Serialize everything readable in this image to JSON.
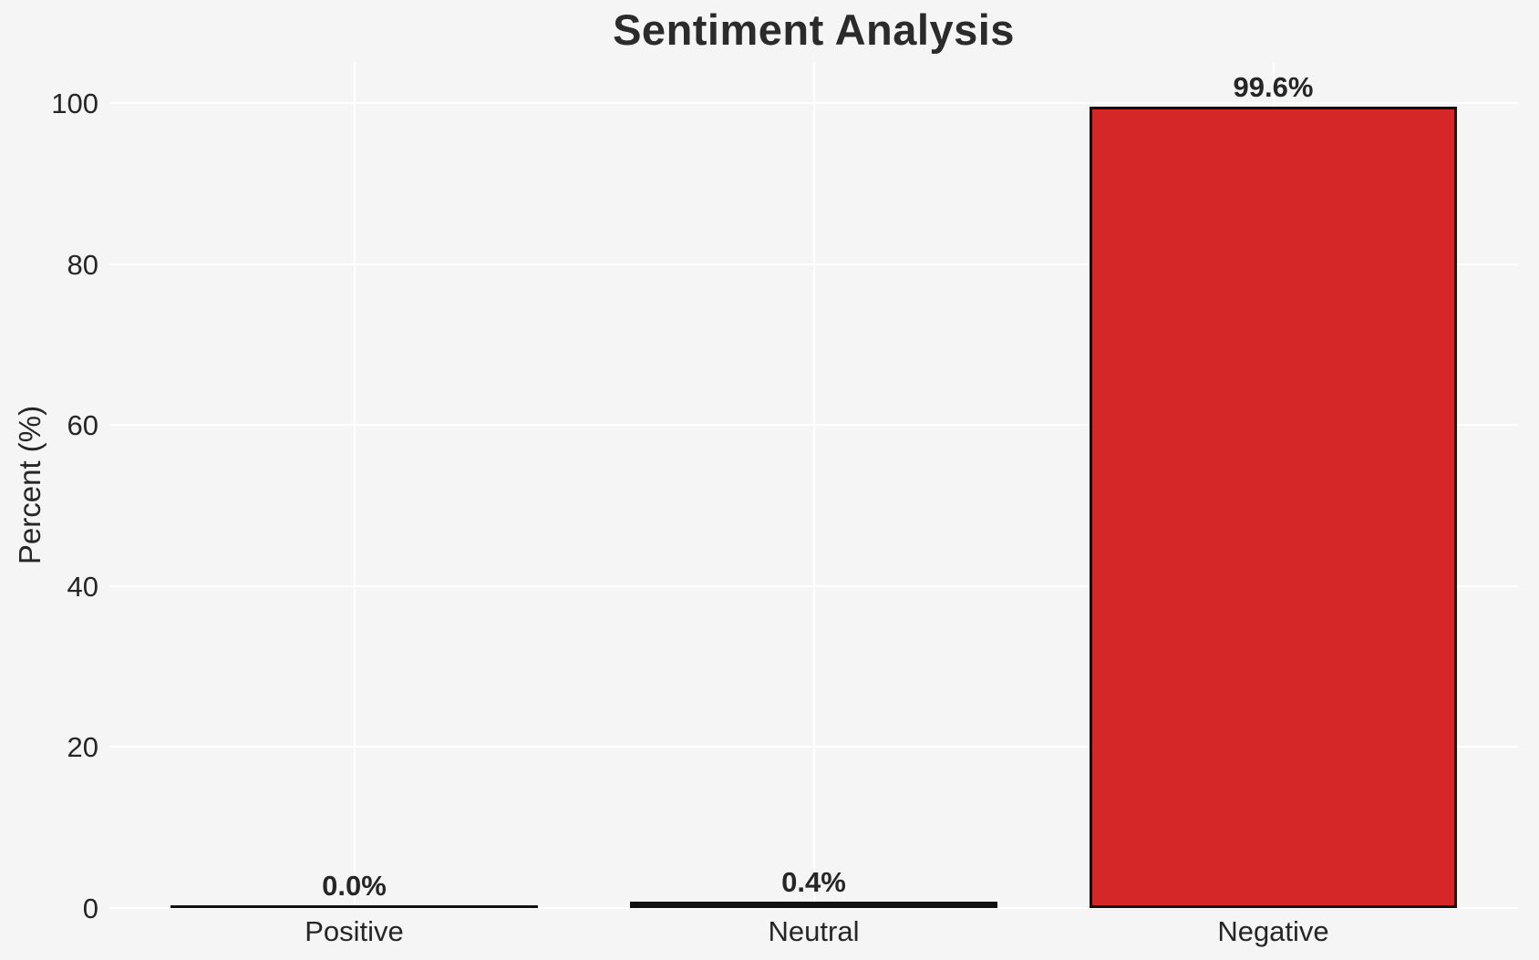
{
  "chart_data": {
    "type": "bar",
    "title": "Sentiment Analysis",
    "xlabel": "",
    "ylabel": "Percent (%)",
    "categories": [
      "Positive",
      "Neutral",
      "Negative"
    ],
    "values": [
      0.0,
      0.4,
      99.6
    ],
    "bar_labels": [
      "0.0%",
      "0.4%",
      "99.6%"
    ],
    "bar_colors": [
      "#111111",
      "#111111",
      "#d62728"
    ],
    "bar_edge_color": "#111111",
    "yticks": [
      0,
      20,
      40,
      60,
      80,
      100
    ],
    "ylim": [
      0,
      105
    ],
    "grid": true,
    "grid_color": "#ffffff",
    "background_color": "#f5f5f6",
    "text_color": "#262626",
    "legend_position": "none"
  }
}
